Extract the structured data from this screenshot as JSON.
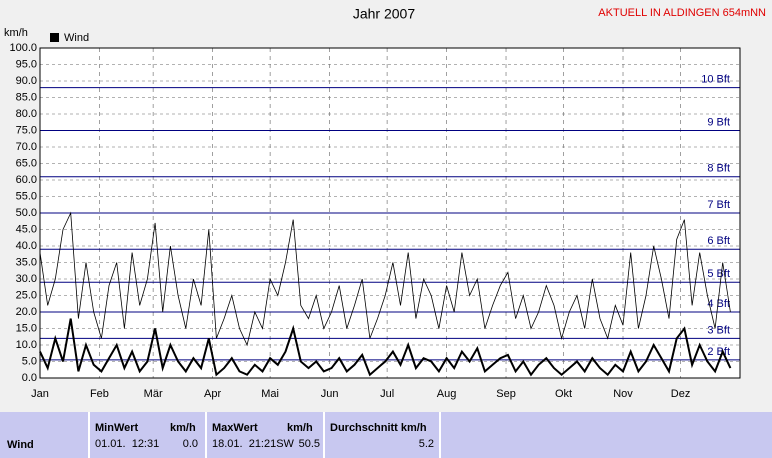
{
  "chart_data": {
    "type": "line",
    "title": "Jahr 2007",
    "station": "AKTUELL IN ALDINGEN 654mNN",
    "y_label": "km/h",
    "x": [
      1,
      5,
      9,
      13,
      17,
      21,
      25,
      29,
      33,
      37,
      41,
      45,
      49,
      53,
      57,
      61,
      65,
      69,
      73,
      77,
      81,
      85,
      89,
      93,
      97,
      101,
      105,
      109,
      113,
      117,
      121,
      125,
      129,
      133,
      137,
      141,
      145,
      149,
      153,
      157,
      161,
      165,
      169,
      173,
      177,
      181,
      185,
      189,
      193,
      197,
      201,
      205,
      209,
      213,
      217,
      221,
      225,
      229,
      233,
      237,
      241,
      245,
      249,
      253,
      257,
      261,
      265,
      269,
      273,
      277,
      281,
      285,
      289,
      293,
      297,
      301,
      305,
      309,
      313,
      317,
      321,
      325,
      329,
      333,
      337,
      341,
      345,
      349,
      353,
      357,
      361
    ],
    "series": [
      {
        "name": "Wind",
        "color": "#000000",
        "values": [
          8,
          3,
          12,
          5,
          18,
          2,
          10,
          4,
          2,
          6,
          10,
          3,
          8,
          2,
          5,
          15,
          3,
          10,
          5,
          2,
          6,
          3,
          12,
          1,
          3,
          6,
          2,
          1,
          4,
          2,
          6,
          4,
          8,
          15,
          5,
          3,
          5,
          2,
          3,
          6,
          2,
          4,
          7,
          1,
          3,
          5,
          8,
          4,
          10,
          3,
          6,
          5,
          2,
          6,
          3,
          8,
          5,
          9,
          2,
          4,
          6,
          7,
          2,
          5,
          1,
          4,
          6,
          3,
          1,
          3,
          5,
          2,
          6,
          3,
          1,
          4,
          2,
          8,
          2,
          5,
          10,
          6,
          2,
          12,
          15,
          4,
          10,
          5,
          2,
          8,
          3
        ]
      },
      {
        "color": "#000000",
        "values": [
          38,
          22,
          30,
          45,
          50,
          18,
          35,
          20,
          12,
          28,
          35,
          15,
          38,
          22,
          30,
          47,
          20,
          40,
          25,
          15,
          30,
          22,
          45,
          12,
          18,
          25,
          15,
          10,
          20,
          15,
          30,
          25,
          35,
          48,
          22,
          18,
          25,
          15,
          20,
          28,
          15,
          22,
          30,
          12,
          18,
          25,
          35,
          22,
          38,
          18,
          30,
          25,
          15,
          28,
          20,
          38,
          25,
          30,
          15,
          22,
          28,
          32,
          18,
          25,
          15,
          20,
          28,
          22,
          12,
          20,
          25,
          15,
          30,
          18,
          12,
          22,
          16,
          38,
          15,
          25,
          40,
          30,
          18,
          42,
          48,
          22,
          38,
          25,
          15,
          35,
          20
        ]
      }
    ],
    "xlim": [
      1,
      366
    ],
    "xticks": [
      {
        "value": 1,
        "label": "Jan"
      },
      {
        "value": 32,
        "label": "Feb"
      },
      {
        "value": 60,
        "label": "Mär"
      },
      {
        "value": 91,
        "label": "Apr"
      },
      {
        "value": 121,
        "label": "Mai"
      },
      {
        "value": 152,
        "label": "Jun"
      },
      {
        "value": 182,
        "label": "Jul"
      },
      {
        "value": 213,
        "label": "Aug"
      },
      {
        "value": 244,
        "label": "Sep"
      },
      {
        "value": 274,
        "label": "Okt"
      },
      {
        "value": 305,
        "label": "Nov"
      },
      {
        "value": 335,
        "label": "Dez"
      }
    ],
    "ylim": [
      0,
      100
    ],
    "yticks": [
      {
        "value": 0,
        "label": "0.0"
      },
      {
        "value": 5,
        "label": "5.0"
      },
      {
        "value": 10,
        "label": "10.0"
      },
      {
        "value": 15,
        "label": "15.0"
      },
      {
        "value": 20,
        "label": "20.0"
      },
      {
        "value": 25,
        "label": "25.0"
      },
      {
        "value": 30,
        "label": "30.0"
      },
      {
        "value": 35,
        "label": "35.0"
      },
      {
        "value": 40,
        "label": "40.0"
      },
      {
        "value": 45,
        "label": "45.0"
      },
      {
        "value": 50,
        "label": "50.0"
      },
      {
        "value": 55,
        "label": "55.0"
      },
      {
        "value": 60,
        "label": "60.0"
      },
      {
        "value": 65,
        "label": "65.0"
      },
      {
        "value": 70,
        "label": "70.0"
      },
      {
        "value": 75,
        "label": "75.0"
      },
      {
        "value": 80,
        "label": "80.0"
      },
      {
        "value": 85,
        "label": "85.0"
      },
      {
        "value": 90,
        "label": "90.0"
      },
      {
        "value": 95,
        "label": "95.0"
      },
      {
        "value": 100,
        "label": "100.0"
      }
    ],
    "beaufort": [
      {
        "value": 5.5,
        "label": "2 Bft"
      },
      {
        "value": 12,
        "label": "3 Bft"
      },
      {
        "value": 20,
        "label": "4 Bft"
      },
      {
        "value": 29,
        "label": "5 Bft"
      },
      {
        "value": 39,
        "label": "6 Bft"
      },
      {
        "value": 50,
        "label": "7 Bft"
      },
      {
        "value": 61,
        "label": "8 Bft"
      },
      {
        "value": 75,
        "label": "9 Bft"
      },
      {
        "value": 88,
        "label": "10 Bft"
      }
    ],
    "beaufort_color": "#000080",
    "grid": true
  },
  "table": {
    "row_label": "Wind",
    "columns": [
      {
        "header": "MinWert",
        "unit": "km/h",
        "time": "01.01.  12:31",
        "value": "0.0"
      },
      {
        "header": "MaxWert",
        "unit": "km/h",
        "time": "18.01.  21:21SW",
        "value": "50.5"
      },
      {
        "header": "Durchschnitt km/h",
        "value": "5.2"
      }
    ]
  }
}
